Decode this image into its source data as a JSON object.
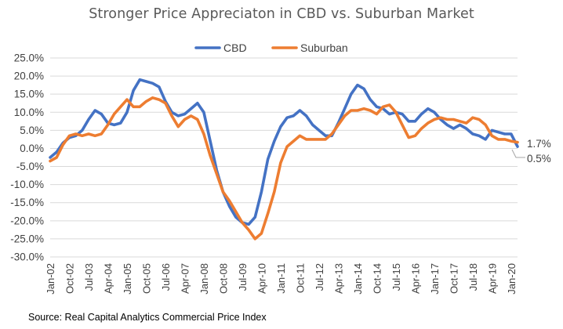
{
  "title": "Stronger Price Appreciaton in CBD vs. Suburban Market",
  "source_note": "Source: Real Capital Analytics Commercial Price Index",
  "chart_data": {
    "type": "line",
    "title": "Stronger Price Appreciaton in CBD vs. Suburban Market",
    "xlabel": "",
    "ylabel": "",
    "ylim": [
      -30,
      25
    ],
    "yticks": [
      25,
      20,
      15,
      10,
      5,
      0,
      -5,
      -10,
      -15,
      -20,
      -25,
      -30
    ],
    "ytick_labels": [
      "25.0%",
      "20.0%",
      "15.0%",
      "10.0%",
      "5.0%",
      "0.0%",
      "-5.0%",
      "-10.0%",
      "-15.0%",
      "-20.0%",
      "-25.0%",
      "-30.0%"
    ],
    "x_range": [
      "Jan-02",
      "Apr-20"
    ],
    "x_ticks": [
      "Jan-02",
      "Oct-02",
      "Jul-03",
      "Apr-04",
      "Jan-05",
      "Oct-05",
      "Jul-06",
      "Apr-07",
      "Jan-08",
      "Oct-08",
      "Jul-09",
      "Apr-10",
      "Jan-11",
      "Oct-11",
      "Jul-12",
      "Apr-13",
      "Jan-14",
      "Oct-14",
      "Jul-15",
      "Apr-16",
      "Jan-17",
      "Oct-17",
      "Jul-18",
      "Apr-19",
      "Jan-20"
    ],
    "grid": true,
    "legend_position": "top-center",
    "end_labels": [
      "1.7%",
      "0.5%"
    ],
    "series": [
      {
        "name": "CBD",
        "color": "#4472C4",
        "points": [
          [
            "Jan-02",
            -2.5
          ],
          [
            "Apr-02",
            -1
          ],
          [
            "Jul-02",
            1.5
          ],
          [
            "Oct-02",
            3
          ],
          [
            "Jan-03",
            3.5
          ],
          [
            "Apr-03",
            5
          ],
          [
            "Jul-03",
            8
          ],
          [
            "Oct-03",
            10.5
          ],
          [
            "Jan-04",
            9.5
          ],
          [
            "Apr-04",
            7
          ],
          [
            "Jul-04",
            6.5
          ],
          [
            "Oct-04",
            7
          ],
          [
            "Jan-05",
            10
          ],
          [
            "Apr-05",
            16
          ],
          [
            "Jul-05",
            19
          ],
          [
            "Oct-05",
            18.5
          ],
          [
            "Jan-06",
            18
          ],
          [
            "Apr-06",
            17
          ],
          [
            "Jul-06",
            13
          ],
          [
            "Oct-06",
            10
          ],
          [
            "Jan-07",
            9
          ],
          [
            "Apr-07",
            9.5
          ],
          [
            "Jul-07",
            11
          ],
          [
            "Oct-07",
            12.5
          ],
          [
            "Jan-08",
            10
          ],
          [
            "Apr-08",
            2
          ],
          [
            "Jul-08",
            -6
          ],
          [
            "Oct-08",
            -12
          ],
          [
            "Jan-09",
            -16
          ],
          [
            "Apr-09",
            -19
          ],
          [
            "Jul-09",
            -20.5
          ],
          [
            "Oct-09",
            -21
          ],
          [
            "Jan-10",
            -19
          ],
          [
            "Apr-10",
            -12
          ],
          [
            "Jul-10",
            -3
          ],
          [
            "Oct-10",
            2
          ],
          [
            "Jan-11",
            6
          ],
          [
            "Apr-11",
            8.5
          ],
          [
            "Jul-11",
            9
          ],
          [
            "Oct-11",
            10.5
          ],
          [
            "Jan-12",
            9
          ],
          [
            "Apr-12",
            6.5
          ],
          [
            "Jul-12",
            5
          ],
          [
            "Oct-12",
            3.5
          ],
          [
            "Jan-13",
            3.5
          ],
          [
            "Apr-13",
            7
          ],
          [
            "Jul-13",
            11
          ],
          [
            "Oct-13",
            15
          ],
          [
            "Jan-14",
            17.5
          ],
          [
            "Apr-14",
            16.5
          ],
          [
            "Jul-14",
            13.5
          ],
          [
            "Oct-14",
            11.5
          ],
          [
            "Jan-15",
            11
          ],
          [
            "Apr-15",
            9.5
          ],
          [
            "Jul-15",
            10
          ],
          [
            "Oct-15",
            9.5
          ],
          [
            "Jan-16",
            7.5
          ],
          [
            "Apr-16",
            7.5
          ],
          [
            "Jul-16",
            9.5
          ],
          [
            "Oct-16",
            11
          ],
          [
            "Jan-17",
            10
          ],
          [
            "Apr-17",
            8
          ],
          [
            "Jul-17",
            6.5
          ],
          [
            "Oct-17",
            5.5
          ],
          [
            "Jan-18",
            6.5
          ],
          [
            "Apr-18",
            5.5
          ],
          [
            "Jul-18",
            4
          ],
          [
            "Oct-18",
            3.5
          ],
          [
            "Jan-19",
            2.5
          ],
          [
            "Apr-19",
            5
          ],
          [
            "Jul-19",
            4.5
          ],
          [
            "Oct-19",
            4
          ],
          [
            "Jan-20",
            4
          ],
          [
            "Apr-20",
            0.5
          ]
        ]
      },
      {
        "name": "Suburban",
        "color": "#ED7D31",
        "points": [
          [
            "Jan-02",
            -3.5
          ],
          [
            "Apr-02",
            -2.5
          ],
          [
            "Jul-02",
            1
          ],
          [
            "Oct-02",
            3.5
          ],
          [
            "Jan-03",
            4
          ],
          [
            "Apr-03",
            3.5
          ],
          [
            "Jul-03",
            4
          ],
          [
            "Oct-03",
            3.5
          ],
          [
            "Jan-04",
            4
          ],
          [
            "Apr-04",
            6.5
          ],
          [
            "Jul-04",
            9.5
          ],
          [
            "Oct-04",
            11.5
          ],
          [
            "Jan-05",
            13.5
          ],
          [
            "Apr-05",
            11.5
          ],
          [
            "Jul-05",
            11.5
          ],
          [
            "Oct-05",
            13
          ],
          [
            "Jan-06",
            14
          ],
          [
            "Apr-06",
            13.5
          ],
          [
            "Jul-06",
            12.5
          ],
          [
            "Oct-06",
            9
          ],
          [
            "Jan-07",
            6
          ],
          [
            "Apr-07",
            8
          ],
          [
            "Jul-07",
            9
          ],
          [
            "Oct-07",
            8
          ],
          [
            "Jan-08",
            4
          ],
          [
            "Apr-08",
            -2
          ],
          [
            "Jul-08",
            -7
          ],
          [
            "Oct-08",
            -12
          ],
          [
            "Jan-09",
            -14.5
          ],
          [
            "Apr-09",
            -17.5
          ],
          [
            "Jul-09",
            -20.5
          ],
          [
            "Oct-09",
            -22.5
          ],
          [
            "Jan-10",
            -25
          ],
          [
            "Apr-10",
            -23.5
          ],
          [
            "Jul-10",
            -18
          ],
          [
            "Oct-10",
            -12
          ],
          [
            "Jan-11",
            -4
          ],
          [
            "Apr-11",
            0.5
          ],
          [
            "Jul-11",
            2
          ],
          [
            "Oct-11",
            3.5
          ],
          [
            "Jan-12",
            2.5
          ],
          [
            "Apr-12",
            2.5
          ],
          [
            "Jul-12",
            2.5
          ],
          [
            "Oct-12",
            2.5
          ],
          [
            "Jan-13",
            4
          ],
          [
            "Apr-13",
            6.5
          ],
          [
            "Jul-13",
            9
          ],
          [
            "Oct-13",
            10.5
          ],
          [
            "Jan-14",
            10.5
          ],
          [
            "Apr-14",
            11
          ],
          [
            "Jul-14",
            10.5
          ],
          [
            "Oct-14",
            9.5
          ],
          [
            "Jan-15",
            11.5
          ],
          [
            "Apr-15",
            12
          ],
          [
            "Jul-15",
            10
          ],
          [
            "Oct-15",
            6.5
          ],
          [
            "Jan-16",
            3
          ],
          [
            "Apr-16",
            3.5
          ],
          [
            "Jul-16",
            5.5
          ],
          [
            "Oct-16",
            7
          ],
          [
            "Jan-17",
            8
          ],
          [
            "Apr-17",
            8.5
          ],
          [
            "Jul-17",
            8
          ],
          [
            "Oct-17",
            8
          ],
          [
            "Jan-18",
            7.5
          ],
          [
            "Apr-18",
            7
          ],
          [
            "Jul-18",
            8.5
          ],
          [
            "Oct-18",
            8
          ],
          [
            "Jan-19",
            6.5
          ],
          [
            "Apr-19",
            3.5
          ],
          [
            "Jul-19",
            2.5
          ],
          [
            "Oct-19",
            2.5
          ],
          [
            "Jan-20",
            2
          ],
          [
            "Apr-20",
            1.7
          ]
        ]
      }
    ]
  }
}
